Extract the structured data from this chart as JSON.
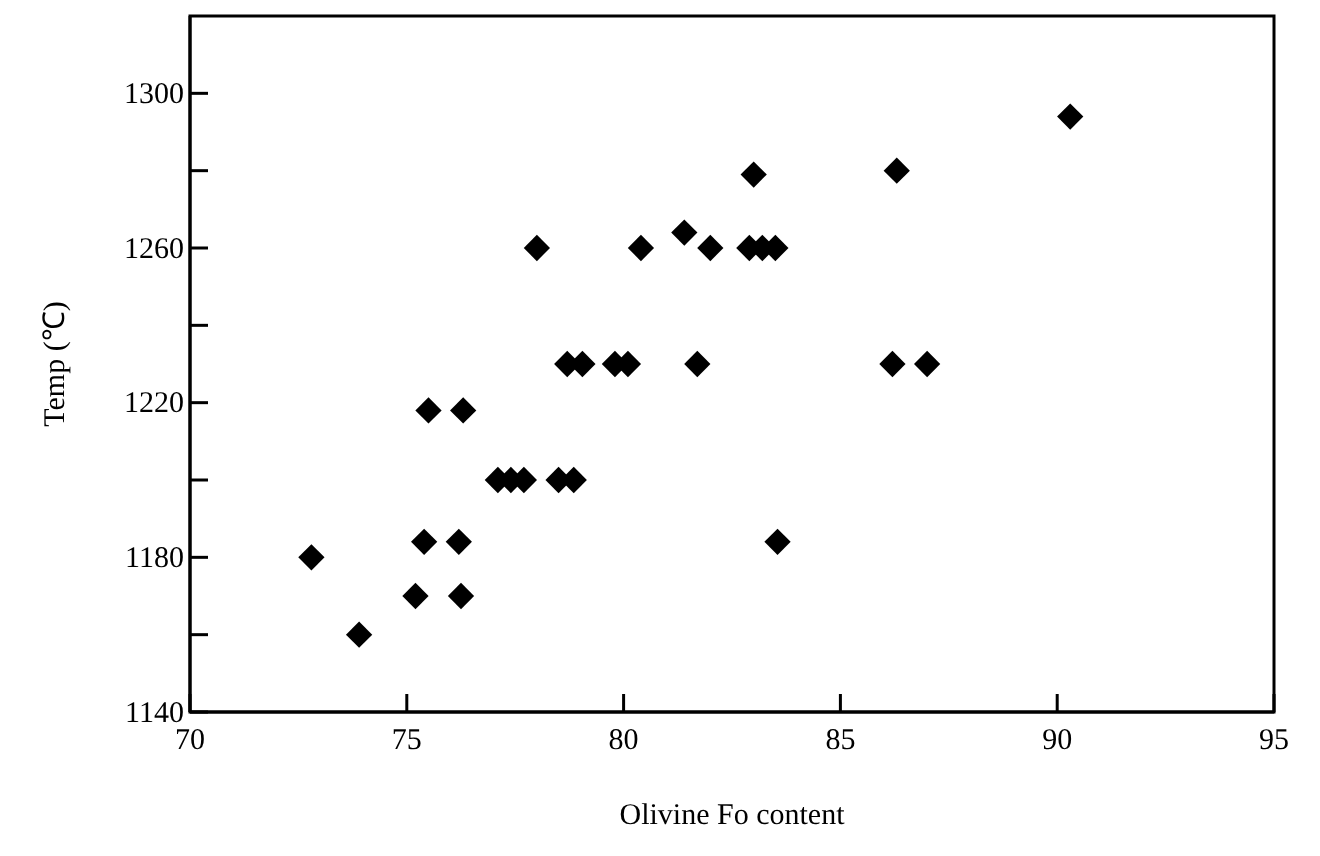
{
  "chart_data": {
    "type": "scatter",
    "xlabel": "Olivine Fo content",
    "ylabel": "Temp (℃)",
    "xlim": [
      70,
      95
    ],
    "ylim": [
      1140,
      1320
    ],
    "xticks": [
      70,
      75,
      80,
      85,
      90,
      95
    ],
    "yticks": [
      1140,
      {
        "value": 1160,
        "label": null
      },
      1180,
      {
        "value": 1200,
        "label": null
      },
      1220,
      {
        "value": 1240,
        "label": null
      },
      1260,
      {
        "value": 1280,
        "label": null
      },
      1300
    ],
    "marker": "diamond",
    "series": [
      {
        "color": "#000000",
        "x": [
          72.8,
          73.9,
          75.2,
          75.4,
          75.5,
          76.2,
          76.3,
          76.25,
          77.1,
          77.4,
          77.7,
          78.0,
          78.5,
          78.85,
          78.7,
          79.05,
          79.8,
          80.1,
          80.4,
          81.4,
          81.7,
          82.0,
          83.0,
          82.9,
          83.2,
          83.5,
          83.55,
          86.3,
          86.2,
          87.0,
          90.3
        ],
        "values": [
          1180,
          1160,
          1170,
          1184,
          1218,
          1184,
          1218,
          1170,
          1200,
          1200,
          1200,
          1260,
          1200,
          1200,
          1230,
          1230,
          1230,
          1230,
          1260,
          1264,
          1230,
          1260,
          1279,
          1260,
          1260,
          1260,
          1184,
          1280,
          1230,
          1230,
          1294
        ]
      }
    ]
  }
}
